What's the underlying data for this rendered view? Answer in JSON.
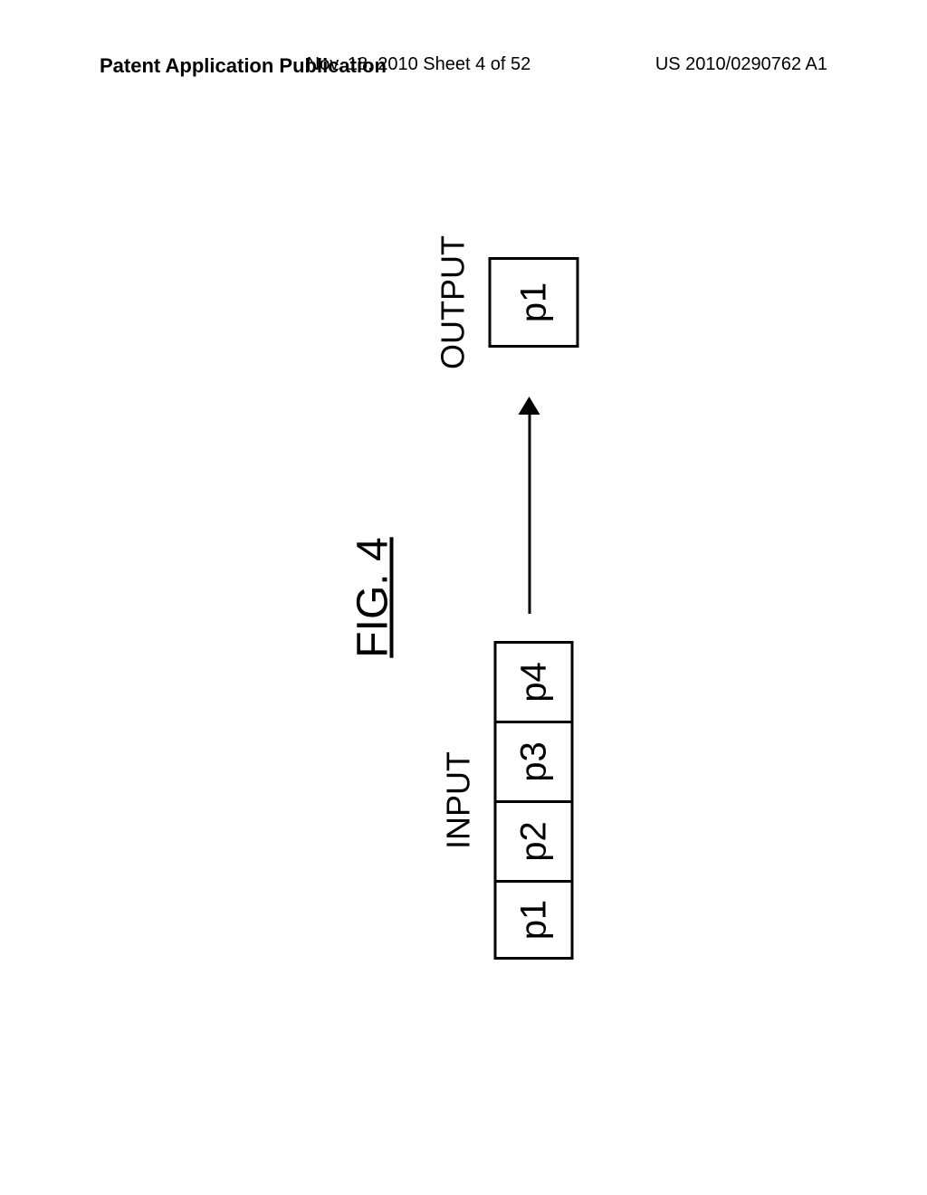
{
  "header": {
    "left": "Patent Application Publication",
    "center": "Nov. 18, 2010  Sheet 4 of 52",
    "right": "US 2010/0290762 A1"
  },
  "figure": {
    "title": "FIG. 4",
    "input_label": "INPUT",
    "output_label": "OUTPUT",
    "input_cells": [
      "p1",
      "p2",
      "p3",
      "p4"
    ],
    "output_cell": "p1"
  },
  "style": {
    "border_color": "#000000",
    "background": "#ffffff",
    "cell_fontsize": 40,
    "label_fontsize": 36,
    "title_fontsize": 48,
    "header_fontsize": 20,
    "rotation_deg": -90
  }
}
